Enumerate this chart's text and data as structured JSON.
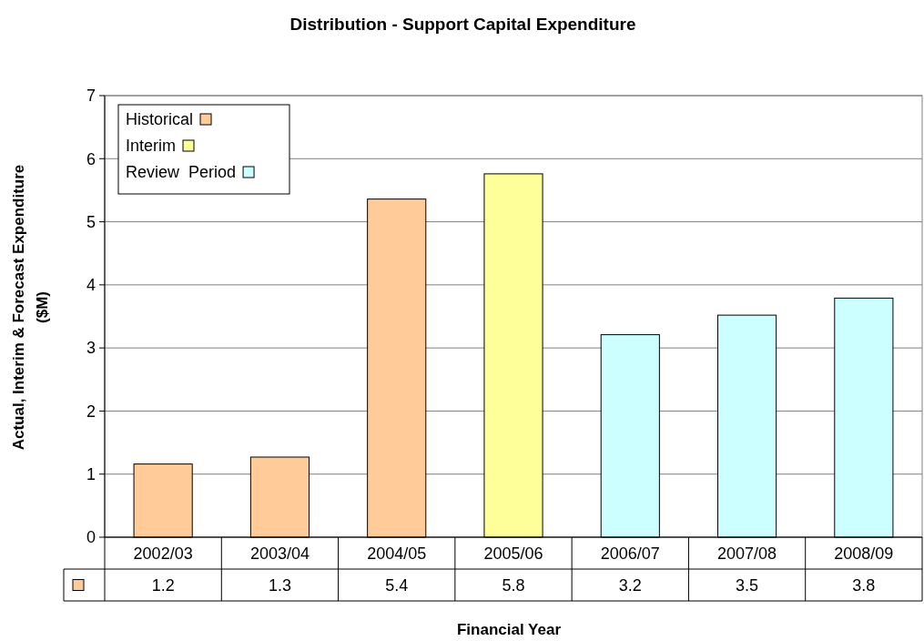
{
  "chart_data": {
    "type": "bar",
    "title": "Distribution - Support Capital Expenditure",
    "xlabel": "Financial Year",
    "ylabel": "Actual, Interim & Forecast Expenditure\n($M)",
    "categories": [
      "2002/03",
      "2003/04",
      "2004/05",
      "2005/06",
      "2006/07",
      "2007/08",
      "2008/09"
    ],
    "series": [
      {
        "name": "Historical",
        "color": "#ffcc99",
        "values": [
          1.16,
          1.27,
          5.36,
          null,
          null,
          null,
          null
        ],
        "value_labels": [
          "1.2",
          "1.3",
          "5.4",
          null,
          null,
          null,
          null
        ]
      },
      {
        "name": "Interim",
        "color": "#ffff99",
        "values": [
          null,
          null,
          null,
          5.76,
          null,
          null,
          null
        ],
        "value_labels": [
          null,
          null,
          null,
          "5.8",
          null,
          null,
          null
        ]
      },
      {
        "name": "Review  Period",
        "color": "#ccffff",
        "values": [
          null,
          null,
          null,
          null,
          3.21,
          3.52,
          3.79
        ],
        "value_labels": [
          null,
          null,
          null,
          null,
          "3.2",
          "3.5",
          "3.8"
        ]
      }
    ],
    "ylim": [
      0,
      7
    ],
    "yticks": [
      0,
      1,
      2,
      3,
      4,
      5,
      6,
      7
    ],
    "grid": "y",
    "legend": "top left"
  }
}
